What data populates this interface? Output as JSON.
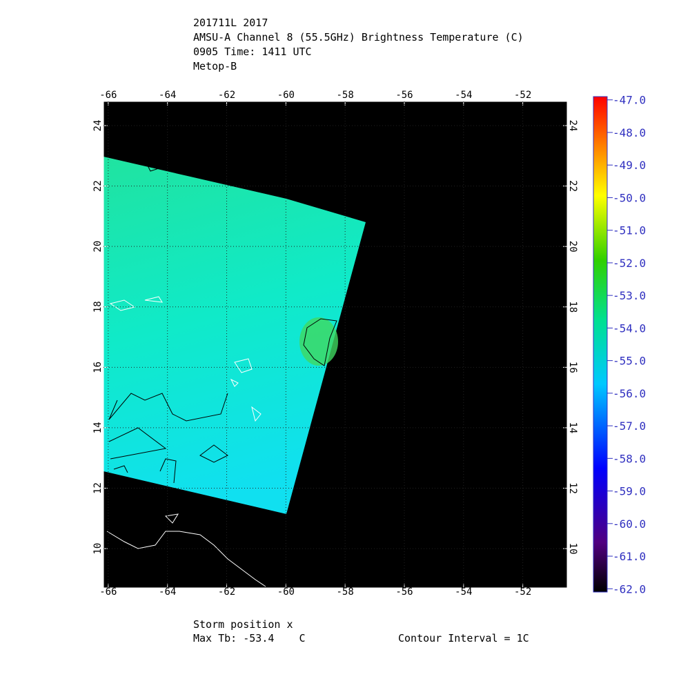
{
  "header": {
    "lines": [
      "201711L 2017",
      "AMSU-A Channel 8 (55.5GHz) Brightness Temperature (C)",
      "0905 Time: 1411 UTC",
      "Metop-B"
    ]
  },
  "map": {
    "xlim": [
      -66.16,
      -50.5
    ],
    "ylim": [
      8.7,
      24.8
    ],
    "xticks": [
      -66,
      -64,
      -62,
      -60,
      -58,
      -56,
      -54,
      -52
    ],
    "yticks": [
      10,
      12,
      14,
      16,
      18,
      20,
      22,
      24
    ],
    "grid": true
  },
  "colorbar": {
    "lim": [
      -62.1,
      -46.9
    ],
    "ticks": [
      {
        "value": -47,
        "label": "-47.0"
      },
      {
        "value": -48,
        "label": "-48.0"
      },
      {
        "value": -49,
        "label": "-49.0"
      },
      {
        "value": -50,
        "label": "-50.0"
      },
      {
        "value": -51,
        "label": "-51.0"
      },
      {
        "value": -52,
        "label": "-52.0"
      },
      {
        "value": -53,
        "label": "-53.0"
      },
      {
        "value": -54,
        "label": "-54.0"
      },
      {
        "value": -55,
        "label": "-55.0"
      },
      {
        "value": -56,
        "label": "-56.0"
      },
      {
        "value": -57,
        "label": "-57.0"
      },
      {
        "value": -58,
        "label": "-58.0"
      },
      {
        "value": -59,
        "label": "-59.0"
      },
      {
        "value": -60,
        "label": "-60.0"
      },
      {
        "value": -61,
        "label": "-61.0"
      },
      {
        "value": -62,
        "label": "-62.0"
      }
    ]
  },
  "footer": {
    "storm": "Storm position x",
    "max_tb": "Max Tb: -53.4    C",
    "contour": "Contour Interval = 1C"
  }
}
